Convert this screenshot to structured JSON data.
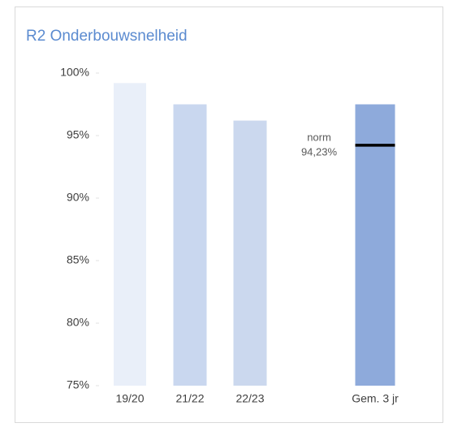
{
  "chart_data": {
    "type": "bar",
    "title": "R2 Onderbouwsnelheid",
    "categories": [
      "19/20",
      "21/22",
      "22/23",
      "Gem. 3 jr"
    ],
    "values": [
      99.2,
      97.5,
      96.2,
      97.5
    ],
    "colors": [
      "#e9eff9",
      "#c9d7ef",
      "#cbd8ee",
      "#8eaadb"
    ],
    "ylim": [
      75,
      100
    ],
    "yticks": [
      {
        "value": 75,
        "label": "75%"
      },
      {
        "value": 80,
        "label": "80%"
      },
      {
        "value": 85,
        "label": "85%"
      },
      {
        "value": 90,
        "label": "90%"
      },
      {
        "value": 95,
        "label": "95%"
      },
      {
        "value": 100,
        "label": "100%"
      }
    ],
    "annotations": [
      {
        "label": "norm",
        "value": 94.23,
        "value_label": "94,23%"
      }
    ]
  }
}
